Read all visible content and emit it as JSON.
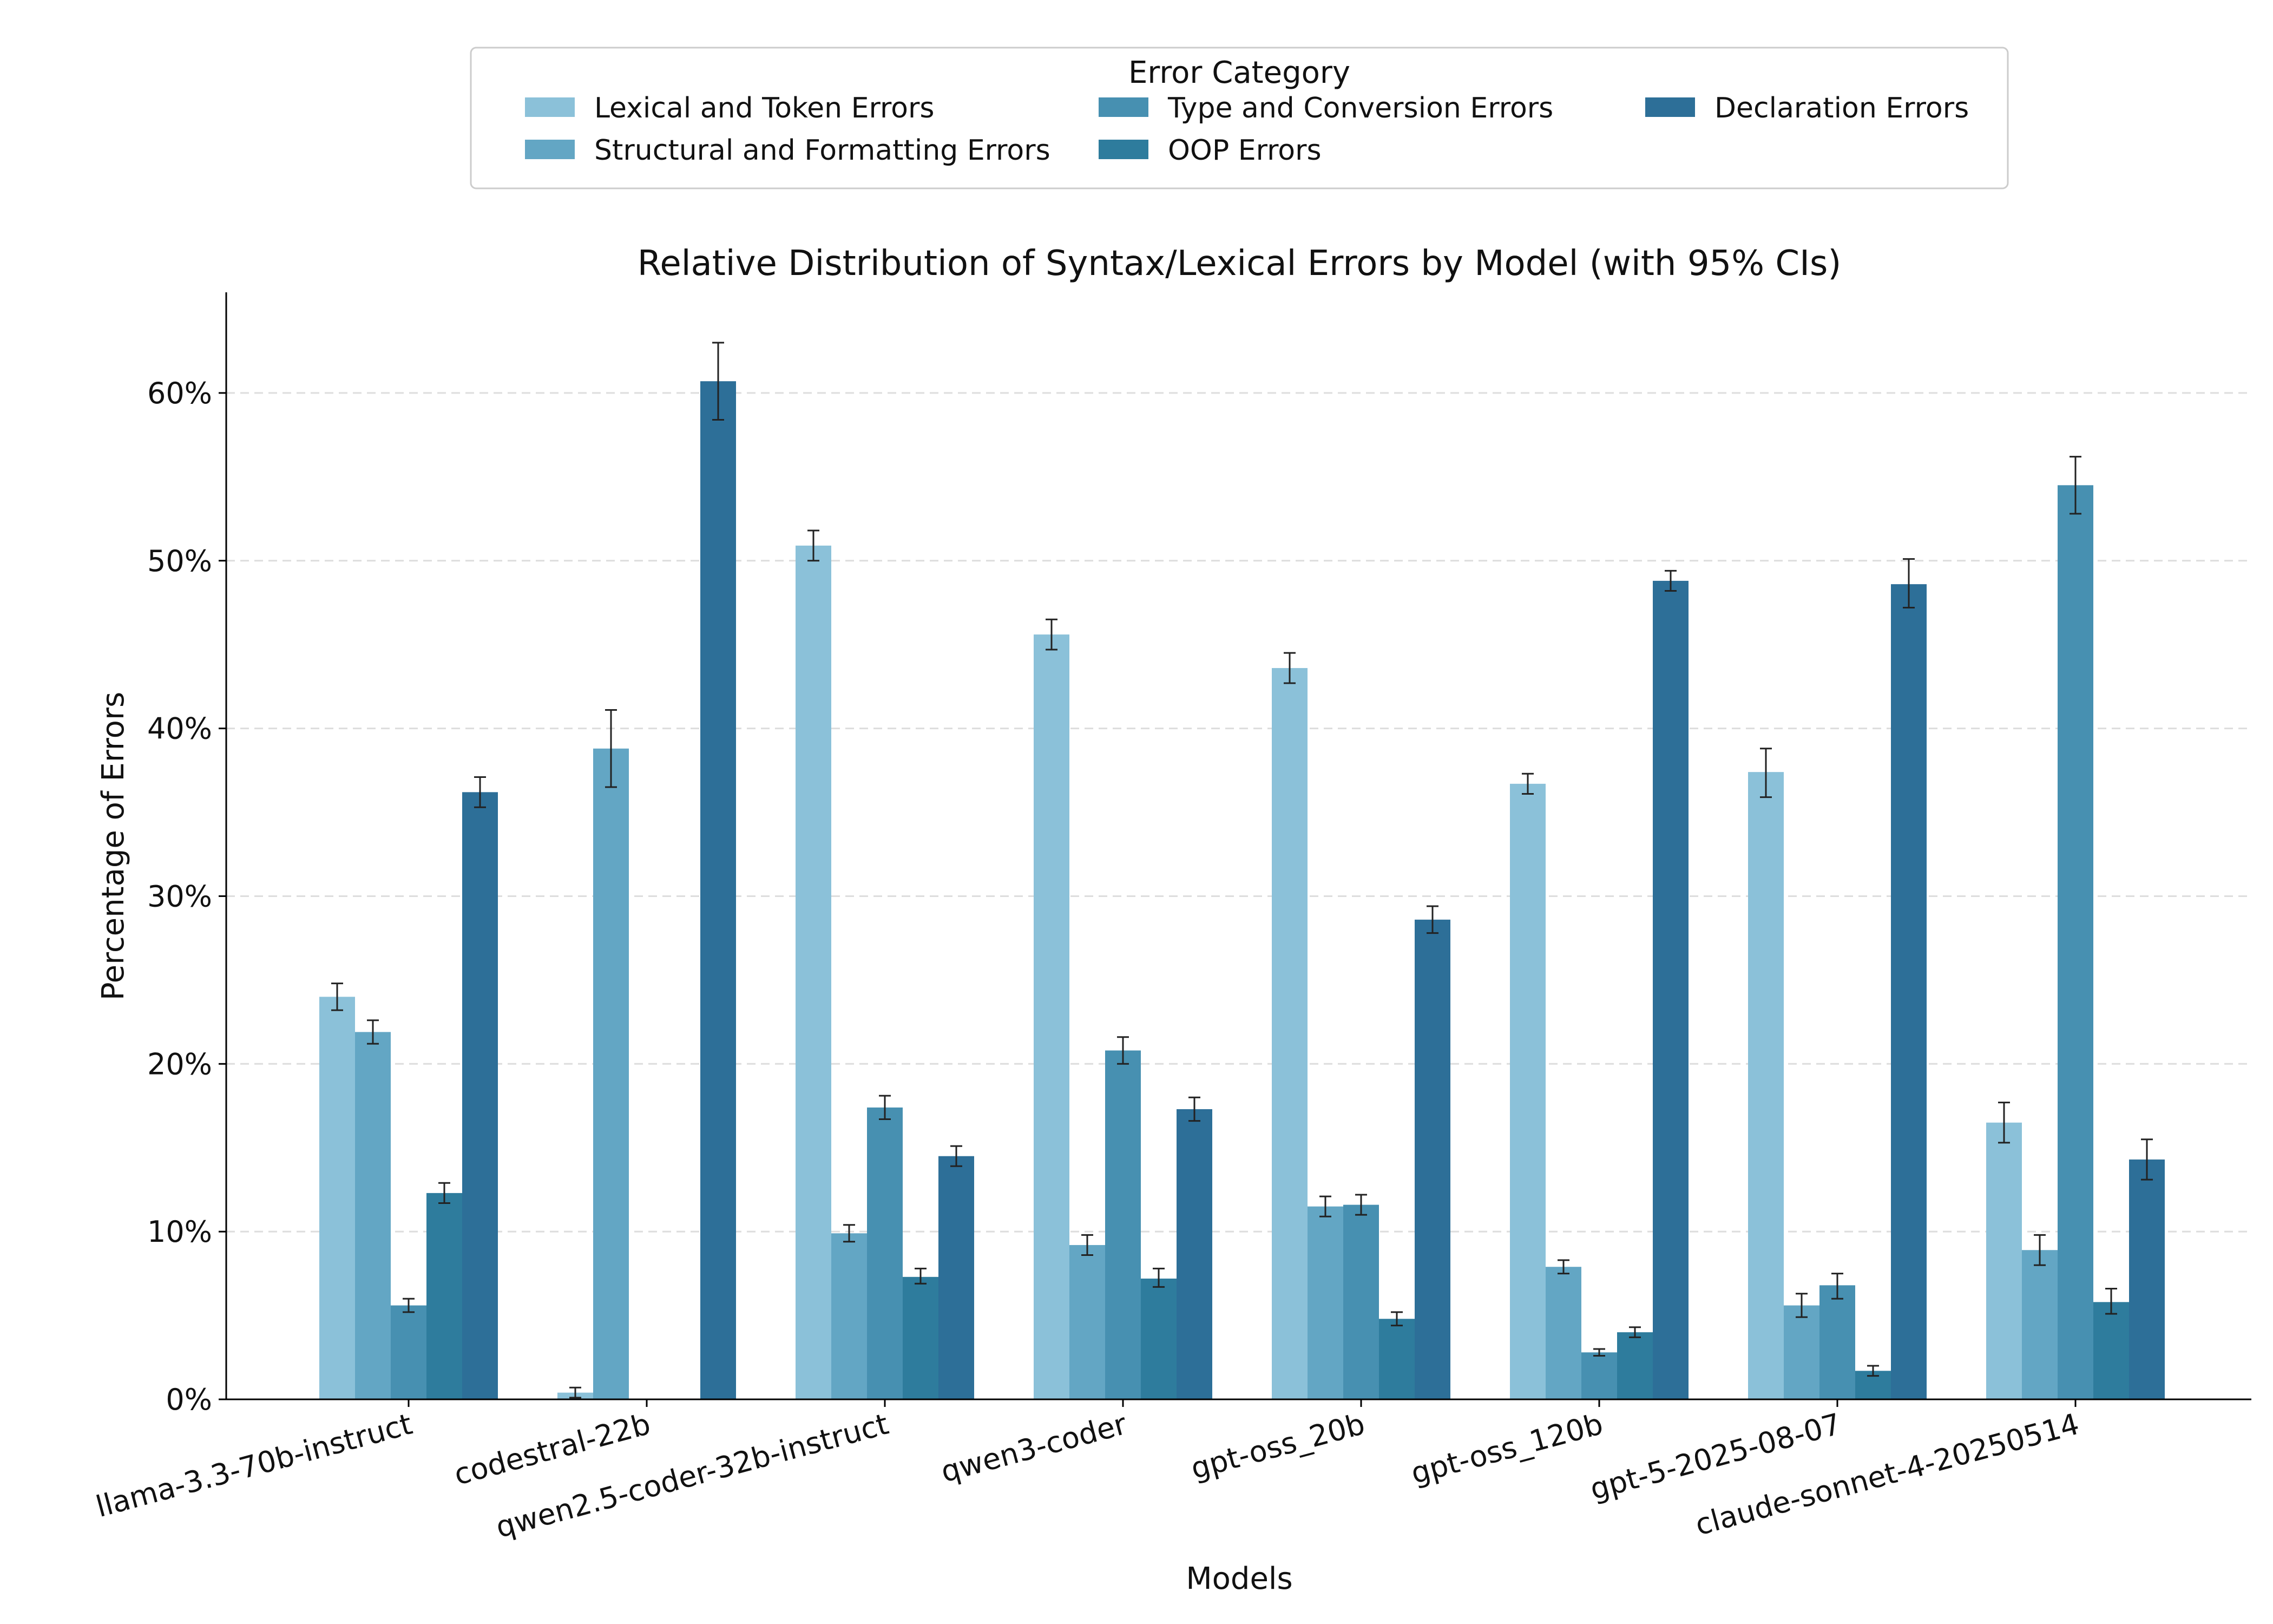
{
  "chart_data": {
    "type": "bar",
    "title": "Relative Distribution of Syntax/Lexical Errors by Model (with 95% CIs)",
    "xlabel": "Models",
    "ylabel": "Percentage of Errors",
    "ylim": [
      0,
      66
    ],
    "yticks": [
      0,
      10,
      20,
      30,
      40,
      50,
      60
    ],
    "ytick_labels": [
      "0%",
      "10%",
      "20%",
      "30%",
      "40%",
      "50%",
      "60%"
    ],
    "grid": "horizontal dashed",
    "legend": {
      "title": "Error Category",
      "placement": "top-center"
    },
    "categories": [
      "llama-3.3-70b-instruct",
      "codestral-22b",
      "qwen2.5-coder-32b-instruct",
      "qwen3-coder",
      "gpt-oss_20b",
      "gpt-oss_120b",
      "gpt-5-2025-08-07",
      "claude-sonnet-4-20250514"
    ],
    "series": [
      {
        "name": "Lexical and Token Errors",
        "color": "#8bc1d9",
        "values": [
          24.0,
          0.4,
          50.9,
          45.6,
          43.6,
          36.7,
          37.4,
          16.5
        ],
        "ci_low": [
          23.2,
          0.1,
          50.0,
          44.7,
          42.7,
          36.1,
          35.9,
          15.3
        ],
        "ci_high": [
          24.8,
          0.7,
          51.8,
          46.5,
          44.5,
          37.3,
          38.8,
          17.7
        ]
      },
      {
        "name": "Structural and Formatting Errors",
        "color": "#63a6c4",
        "values": [
          21.9,
          38.8,
          9.9,
          9.2,
          11.5,
          7.9,
          5.6,
          8.9
        ],
        "ci_low": [
          21.2,
          36.5,
          9.4,
          8.6,
          10.9,
          7.5,
          4.9,
          8.0
        ],
        "ci_high": [
          22.6,
          41.1,
          10.4,
          9.8,
          12.1,
          8.3,
          6.3,
          9.8
        ]
      },
      {
        "name": "Type and Conversion Errors",
        "color": "#4790b1",
        "values": [
          5.6,
          0.0,
          17.4,
          20.8,
          11.6,
          2.8,
          6.8,
          54.5
        ],
        "ci_low": [
          5.2,
          0.0,
          16.7,
          20.0,
          11.0,
          2.6,
          6.0,
          52.8
        ],
        "ci_high": [
          6.0,
          0.0,
          18.1,
          21.6,
          12.2,
          3.0,
          7.5,
          56.2
        ]
      },
      {
        "name": "OOP Errors",
        "color": "#2e7c9d",
        "values": [
          12.3,
          0.0,
          7.3,
          7.2,
          4.8,
          4.0,
          1.7,
          5.8
        ],
        "ci_low": [
          11.7,
          0.0,
          6.9,
          6.7,
          4.4,
          3.7,
          1.4,
          5.1
        ],
        "ci_high": [
          12.9,
          0.0,
          7.8,
          7.8,
          5.2,
          4.3,
          2.0,
          6.6
        ]
      },
      {
        "name": "Declaration Errors",
        "color": "#2d6f98",
        "values": [
          36.2,
          60.7,
          14.5,
          17.3,
          28.6,
          48.8,
          48.6,
          14.3
        ],
        "ci_low": [
          35.3,
          58.4,
          13.9,
          16.6,
          27.8,
          48.2,
          47.2,
          13.1
        ],
        "ci_high": [
          37.1,
          63.0,
          15.1,
          18.0,
          29.4,
          49.4,
          50.1,
          15.5
        ]
      }
    ]
  }
}
